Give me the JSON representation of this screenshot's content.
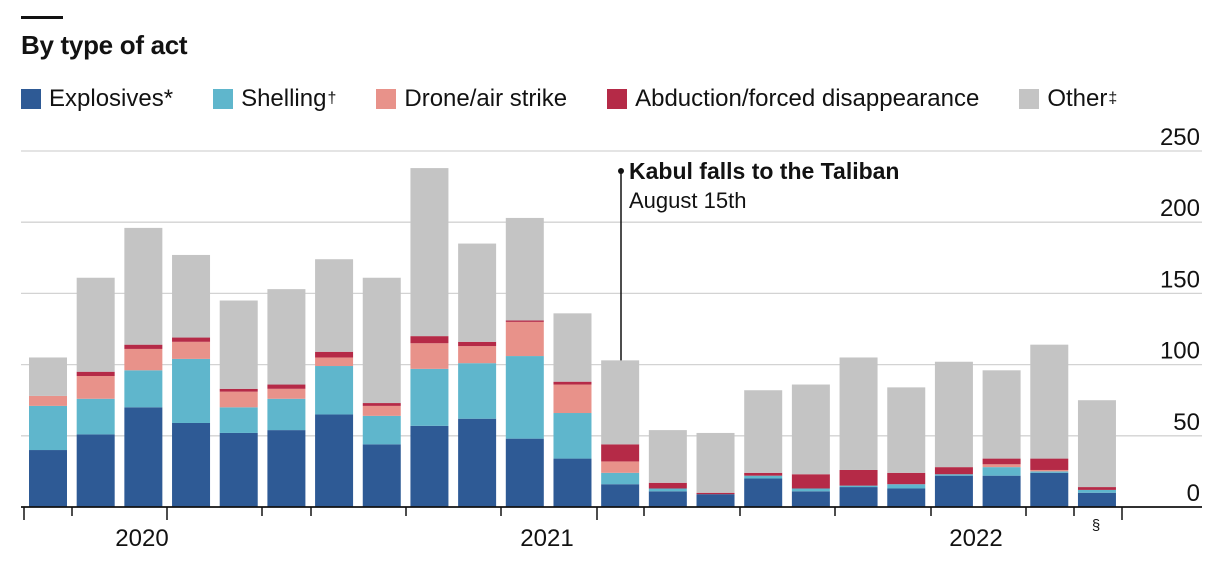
{
  "chart_data": {
    "type": "bar",
    "stacked": true,
    "title": "By type of act",
    "series": [
      {
        "name": "Explosives",
        "marker": "*",
        "color": "#2e5a95",
        "values": [
          40,
          51,
          70,
          59,
          52,
          54,
          65,
          44,
          57,
          62,
          48,
          34,
          16,
          11,
          9,
          20,
          11,
          14,
          13,
          22,
          22,
          24,
          10
        ]
      },
      {
        "name": "Shelling",
        "marker": "†",
        "color": "#5fb6cc",
        "values": [
          31,
          25,
          26,
          45,
          18,
          22,
          34,
          20,
          40,
          39,
          58,
          32,
          8,
          2,
          0,
          2,
          2,
          1,
          3,
          1,
          6,
          1,
          2
        ]
      },
      {
        "name": "Drone/air strike",
        "marker": "",
        "color": "#e8928a",
        "values": [
          7,
          16,
          15,
          12,
          11,
          7,
          6,
          7,
          18,
          12,
          24,
          20,
          8,
          0,
          0,
          0,
          0,
          0,
          0,
          0,
          2,
          1,
          0
        ]
      },
      {
        "name": "Abduction/forced disappearance",
        "marker": "",
        "color": "#b52a47",
        "values": [
          0,
          3,
          3,
          3,
          2,
          3,
          4,
          2,
          5,
          3,
          1,
          2,
          12,
          4,
          1,
          2,
          10,
          11,
          8,
          5,
          4,
          8,
          2
        ]
      },
      {
        "name": "Other",
        "marker": "‡",
        "color": "#c4c4c4",
        "values": [
          27,
          66,
          82,
          58,
          62,
          67,
          65,
          88,
          118,
          69,
          72,
          48,
          59,
          37,
          42,
          58,
          63,
          79,
          60,
          74,
          62,
          80,
          61
        ]
      }
    ],
    "ylim": [
      0,
      250
    ],
    "yticks": [
      0,
      50,
      100,
      150,
      200,
      250
    ],
    "ytick_labels": [
      "0",
      "50",
      "100",
      "150",
      "200",
      "250"
    ],
    "y_axis_position": "right",
    "grid": true,
    "x_group_labels": [
      "2020",
      "2021",
      "2022"
    ],
    "x_footnote_marker": "§",
    "annotation": {
      "title": "Kabul falls to the Taliban",
      "subtitle": "August 15th"
    },
    "legend_placement": "top"
  }
}
